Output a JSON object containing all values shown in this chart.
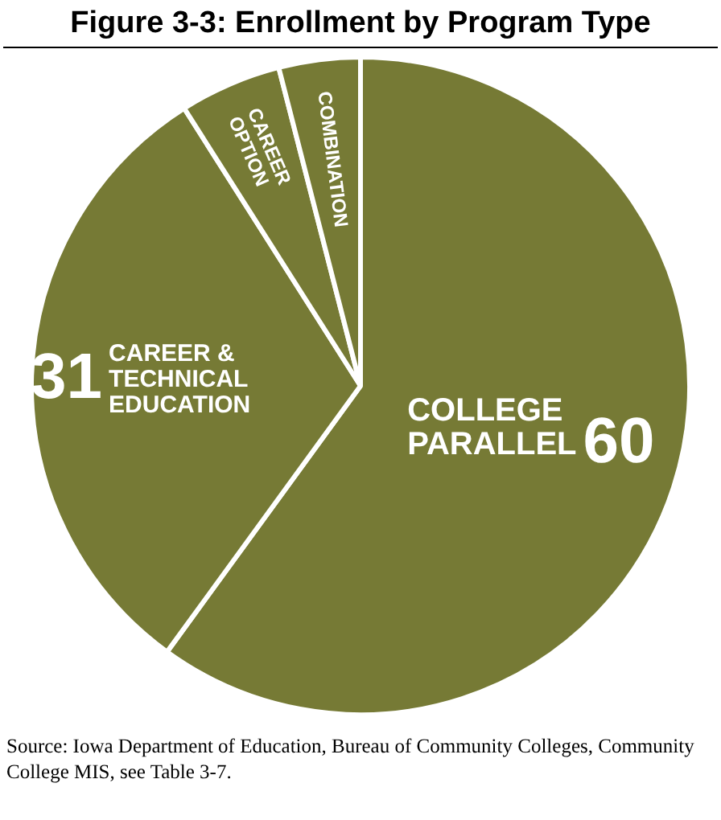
{
  "chart_data": {
    "type": "pie",
    "title": "Figure 3-3: Enrollment by Program Type",
    "categories": [
      "COLLEGE PARALLEL",
      "CAREER & TECHNICAL EDUCATION",
      "CAREER OPTION",
      "COMBINATION"
    ],
    "values": [
      60,
      31,
      5,
      4
    ],
    "colors": [
      "#767a35",
      "#767a35",
      "#767a35",
      "#767a35"
    ],
    "value_labels": [
      "60",
      "31",
      null,
      null
    ],
    "legend": false,
    "annotations": [
      "Source: Iowa Department of Education, Bureau of Community Colleges, Community College MIS, see Table 3-7."
    ]
  }
}
